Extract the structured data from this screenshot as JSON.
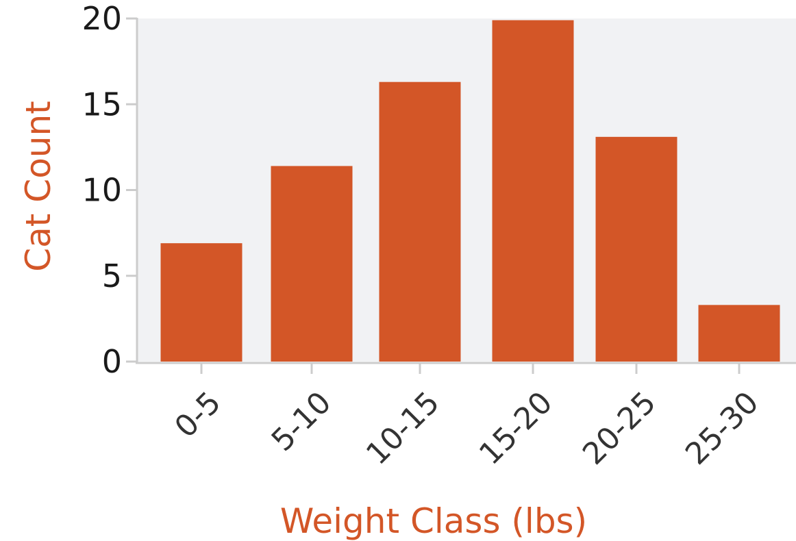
{
  "chart_data": {
    "type": "bar",
    "title": "",
    "xlabel": "Weight Class (lbs)",
    "ylabel": "Cat Count",
    "categories": [
      "0-5",
      "5-10",
      "10-15",
      "15-20",
      "20-25",
      "25-30"
    ],
    "values": [
      6.9,
      11.4,
      16.3,
      19.9,
      13.1,
      3.3
    ],
    "ylim": [
      0,
      20
    ],
    "yticks": [
      "0",
      "5",
      "10",
      "15",
      "20"
    ],
    "grid": false,
    "legend": "none"
  },
  "colors": {
    "bar": "#d35627",
    "plot_background": "#f1f2f4",
    "axis": "#cccccc",
    "label": "#d35627"
  }
}
